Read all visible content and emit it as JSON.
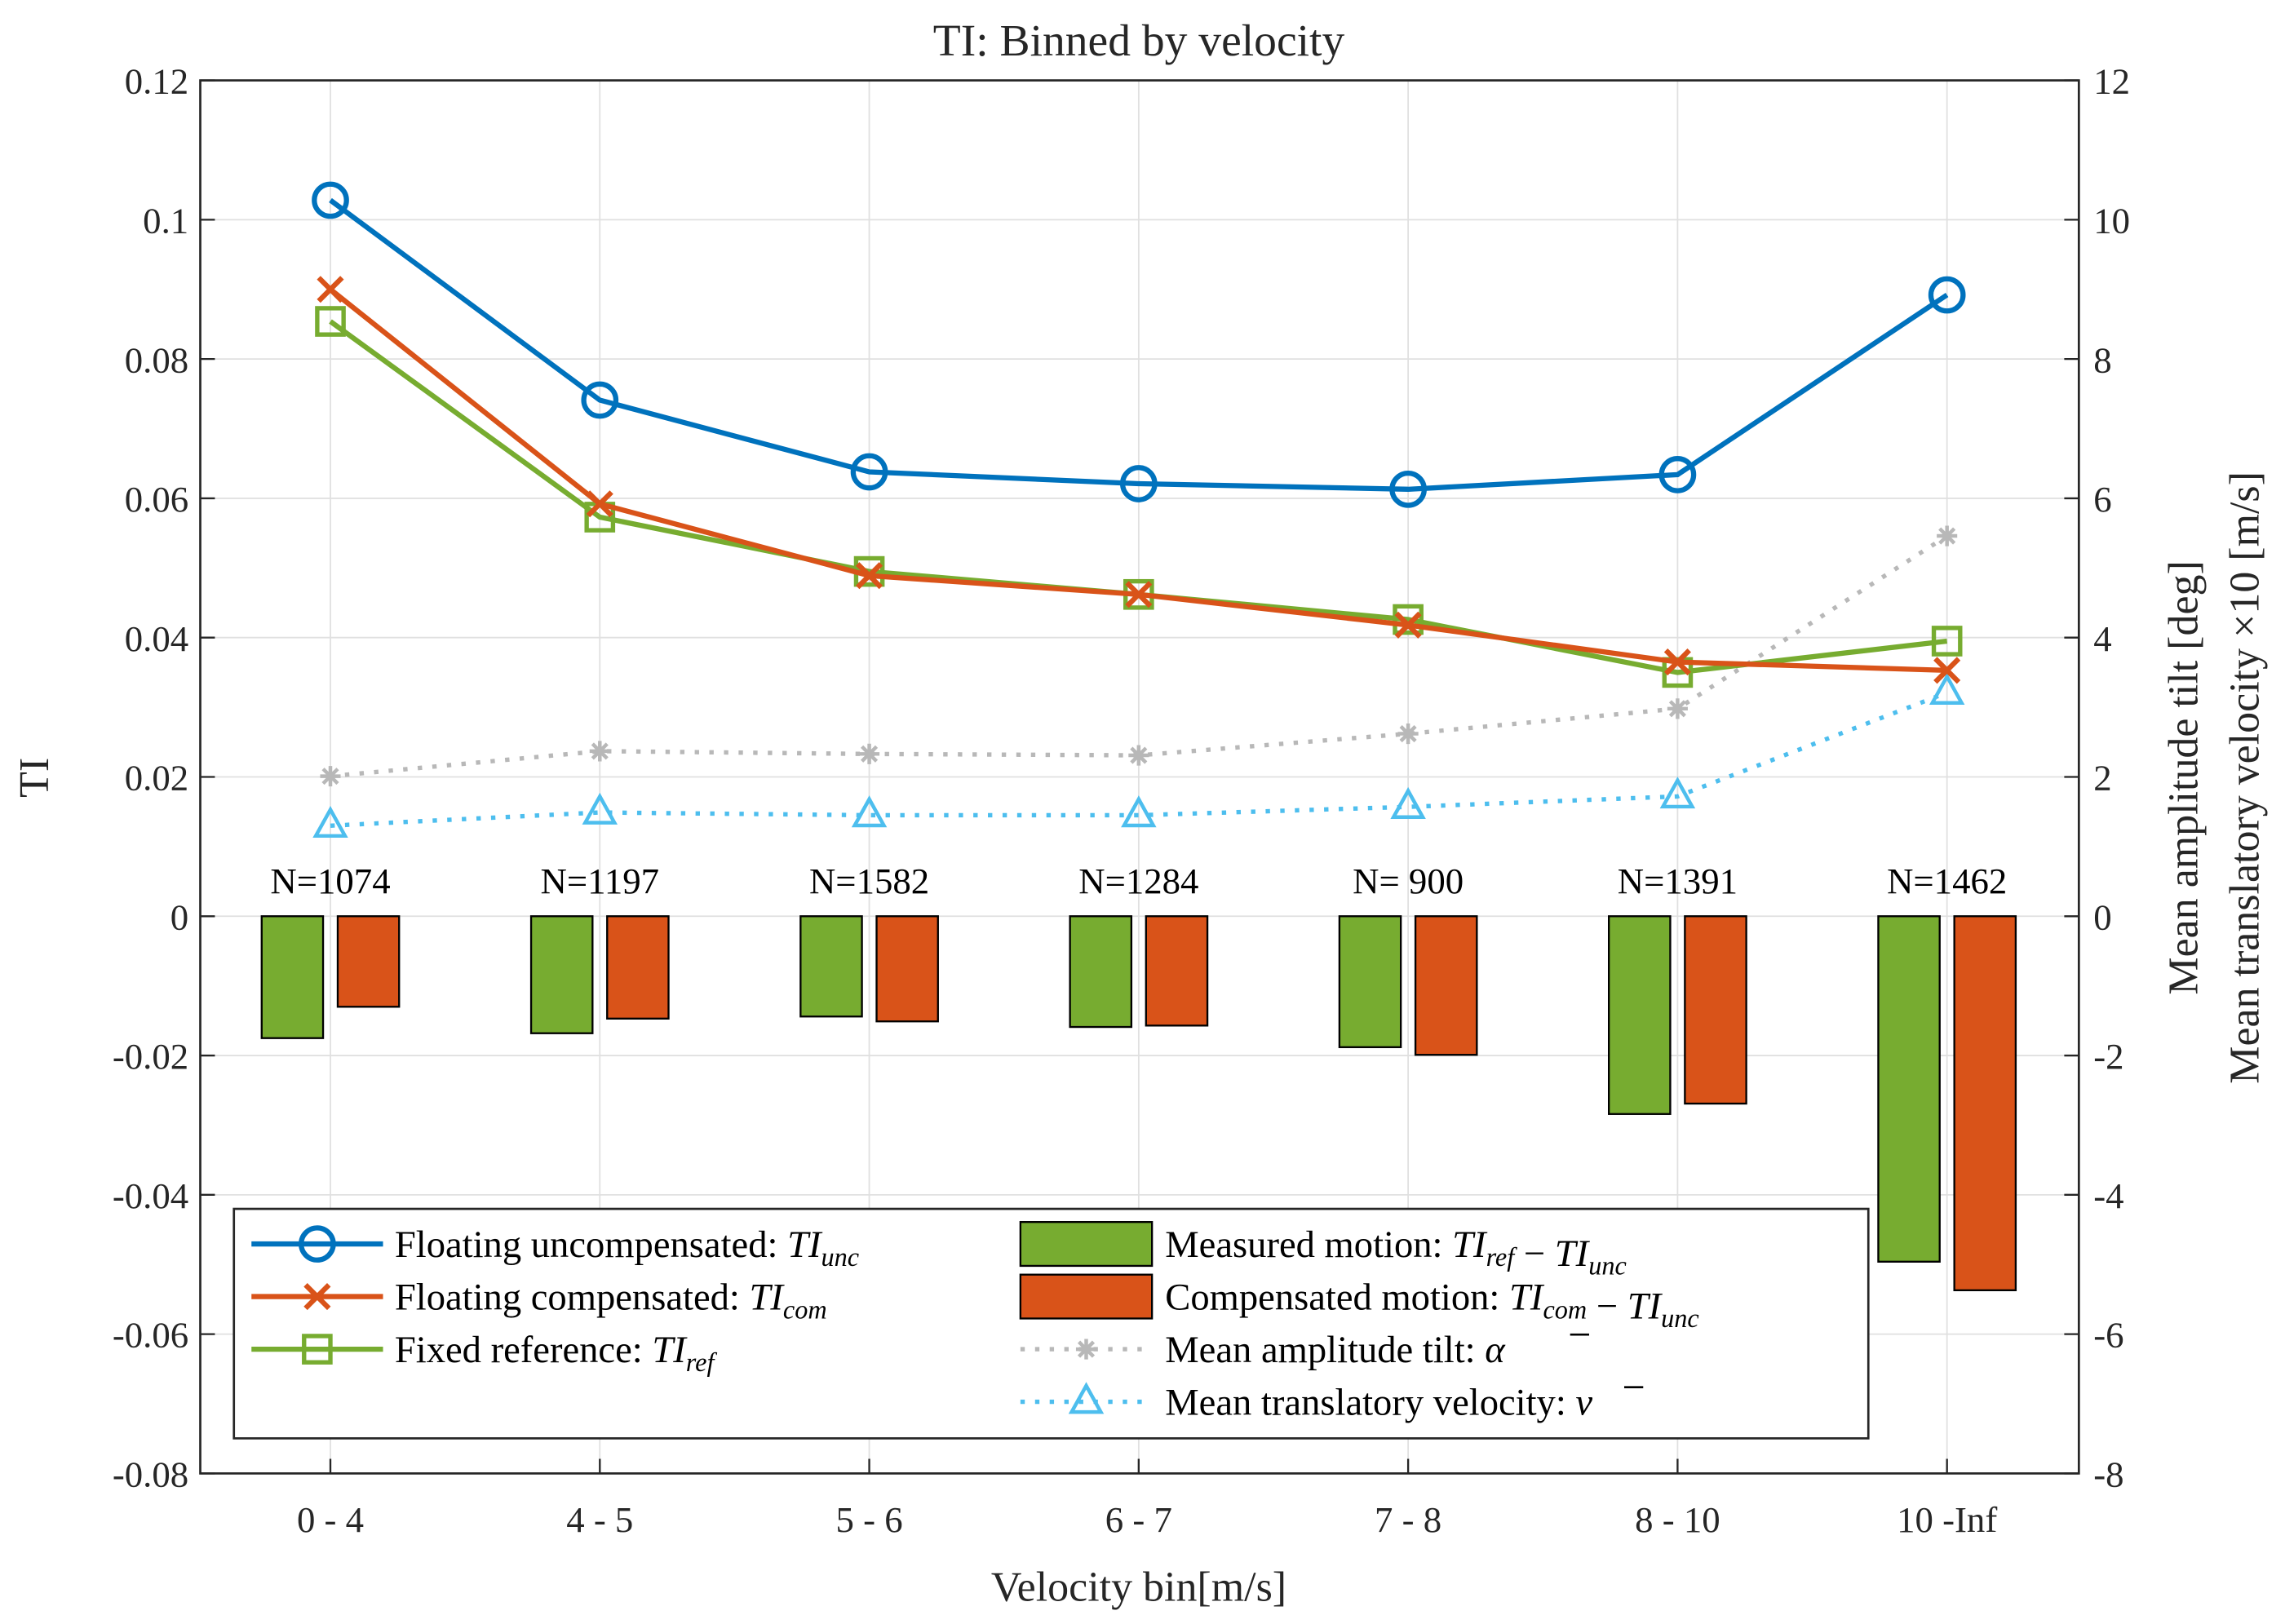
{
  "chart_data": {
    "type": "line+bar",
    "title": "TI: Binned by velocity",
    "xlabel": "Velocity bin[m/s]",
    "ylabel": "TI",
    "ylabel_right": [
      "Mean amplitude tilt [deg]",
      "Mean translatory velocity ×10 [m/s]"
    ],
    "categories": [
      "0 - 4",
      "4 - 5",
      "5 - 6",
      "6 - 7",
      "7 - 8",
      "8 - 10",
      "10 -Inf"
    ],
    "counts": [
      "N=1074",
      "N=1197",
      "N=1582",
      "N=1284",
      "N= 900",
      "N=1391",
      "N=1462"
    ],
    "ylim": [
      -0.08,
      0.12
    ],
    "yticks": [
      "-0.08",
      "-0.06",
      "-0.04",
      "-0.02",
      "0",
      "0.02",
      "0.04",
      "0.06",
      "0.08",
      "0.1",
      "0.12"
    ],
    "ylim_right": [
      -8,
      12
    ],
    "yticks_right": [
      "-8",
      "-6",
      "-4",
      "-2",
      "0",
      "2",
      "4",
      "6",
      "8",
      "10",
      "12"
    ],
    "grid": true,
    "legend_placement": "bottom-center",
    "series": [
      {
        "name": "Floating uncompensated: ",
        "math": "TI",
        "sub": "unc",
        "type": "line",
        "axis": "left",
        "marker": "circle",
        "color": "#0072BD",
        "values": [
          0.1028,
          0.0741,
          0.0638,
          0.0621,
          0.0613,
          0.0634,
          0.0892
        ]
      },
      {
        "name": "Floating compensated: ",
        "math": "TI",
        "sub": "com",
        "type": "line",
        "axis": "left",
        "marker": "x",
        "color": "#D95319",
        "values": [
          0.09,
          0.0592,
          0.0489,
          0.0462,
          0.0418,
          0.0365,
          0.0353
        ]
      },
      {
        "name": "Fixed reference: ",
        "math": "TI",
        "sub": "ref",
        "type": "line",
        "axis": "left",
        "marker": "square",
        "color": "#77AC30",
        "values": [
          0.0854,
          0.0573,
          0.0495,
          0.0462,
          0.0426,
          0.035,
          0.0395
        ]
      },
      {
        "name": "Measured motion: ",
        "math": "TI",
        "sub": "ref",
        "math2": "TI",
        "sub2": "unc",
        "type": "bar",
        "axis": "left",
        "color": "#77AC30",
        "values": [
          -0.0175,
          -0.0168,
          -0.0144,
          -0.0159,
          -0.0188,
          -0.0284,
          -0.0496
        ]
      },
      {
        "name": "Compensated motion: ",
        "math": "TI",
        "sub": "com",
        "math2": "TI",
        "sub2": "unc",
        "type": "bar",
        "axis": "left",
        "color": "#D95319",
        "values": [
          -0.013,
          -0.0147,
          -0.0151,
          -0.0157,
          -0.0199,
          -0.0269,
          -0.0537
        ]
      },
      {
        "name": "Mean amplitude tilt: ",
        "math": "α",
        "overline": true,
        "type": "dotted",
        "axis": "right",
        "marker": "asterisk",
        "color": "#B8B8B8",
        "values": [
          2.01,
          2.37,
          2.33,
          2.31,
          2.62,
          2.98,
          5.46
        ]
      },
      {
        "name": "Mean translatory velocity: ",
        "math": "v",
        "overline": true,
        "type": "dotted",
        "axis": "right",
        "marker": "triangle",
        "color": "#4DBEEE",
        "values": [
          1.3,
          1.49,
          1.45,
          1.45,
          1.57,
          1.72,
          3.21
        ]
      }
    ]
  }
}
